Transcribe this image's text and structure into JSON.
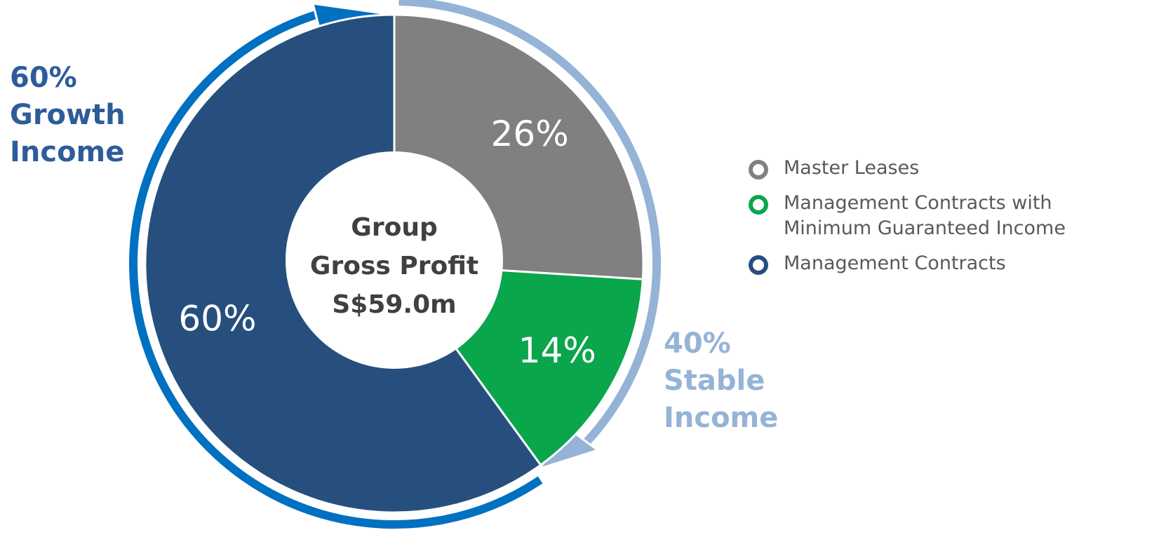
{
  "chart_data": {
    "type": "pie",
    "categories": [
      "Master Leases",
      "Management Contracts with Minimum Guaranteed Income",
      "Management Contracts"
    ],
    "values": [
      26,
      14,
      60
    ],
    "value_labels": [
      "26%",
      "14%",
      "60%"
    ],
    "colors": [
      "#808080",
      "#0aa64b",
      "#264f7d"
    ],
    "center_text": [
      "Group",
      "Gross Profit",
      "S$59.0m"
    ],
    "annotations": [
      {
        "lines": [
          "60%",
          "Growth",
          "Income"
        ],
        "color": "#2e5c9a"
      },
      {
        "lines": [
          "40%",
          "Stable",
          "Income"
        ],
        "color": "#95b3d7"
      }
    ],
    "legend": "right"
  }
}
